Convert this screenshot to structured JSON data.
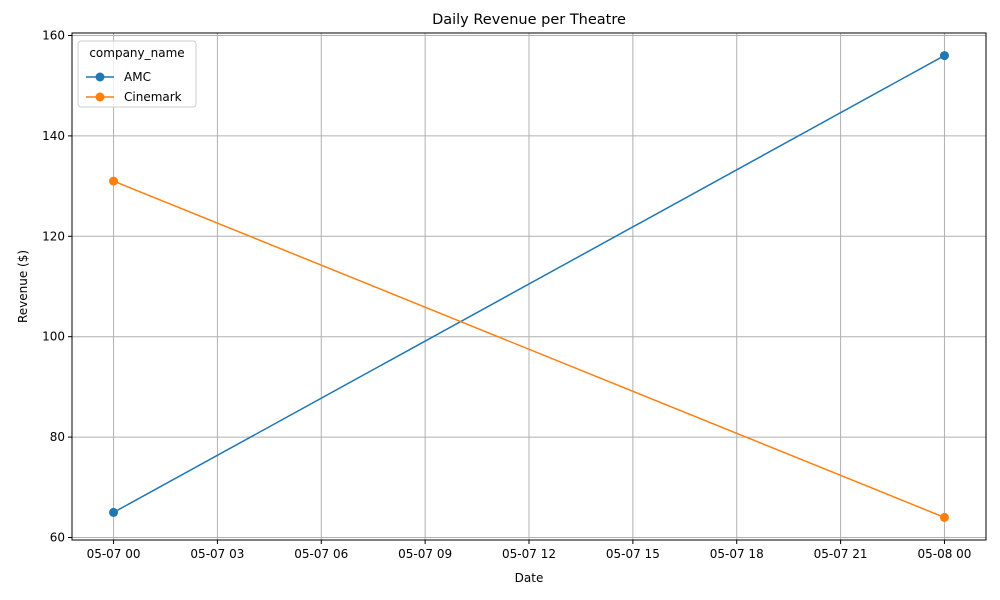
{
  "chart_data": {
    "type": "line",
    "title": "Daily Revenue per Theatre",
    "xlabel": "Date",
    "ylabel": "Revenue ($)",
    "x_tick_labels": [
      "05-07 00",
      "05-07 03",
      "05-07 06",
      "05-07 09",
      "05-07 12",
      "05-07 15",
      "05-07 18",
      "05-07 21",
      "05-08 00"
    ],
    "x_tick_hours": [
      0,
      3,
      6,
      9,
      12,
      15,
      18,
      21,
      24
    ],
    "x_range_hours": [
      -1.2,
      25.2
    ],
    "y_ticks": [
      60,
      80,
      100,
      120,
      140,
      160
    ],
    "ylim": [
      59.5,
      160.5
    ],
    "grid": true,
    "legend": {
      "title": "company_name",
      "placement": "top-left"
    },
    "series": [
      {
        "name": "AMC",
        "color": "#1f77b4",
        "x_hours": [
          0,
          24
        ],
        "values": [
          65,
          156
        ]
      },
      {
        "name": "Cinemark",
        "color": "#ff7f0e",
        "x_hours": [
          0,
          24
        ],
        "values": [
          131,
          64
        ]
      }
    ]
  }
}
